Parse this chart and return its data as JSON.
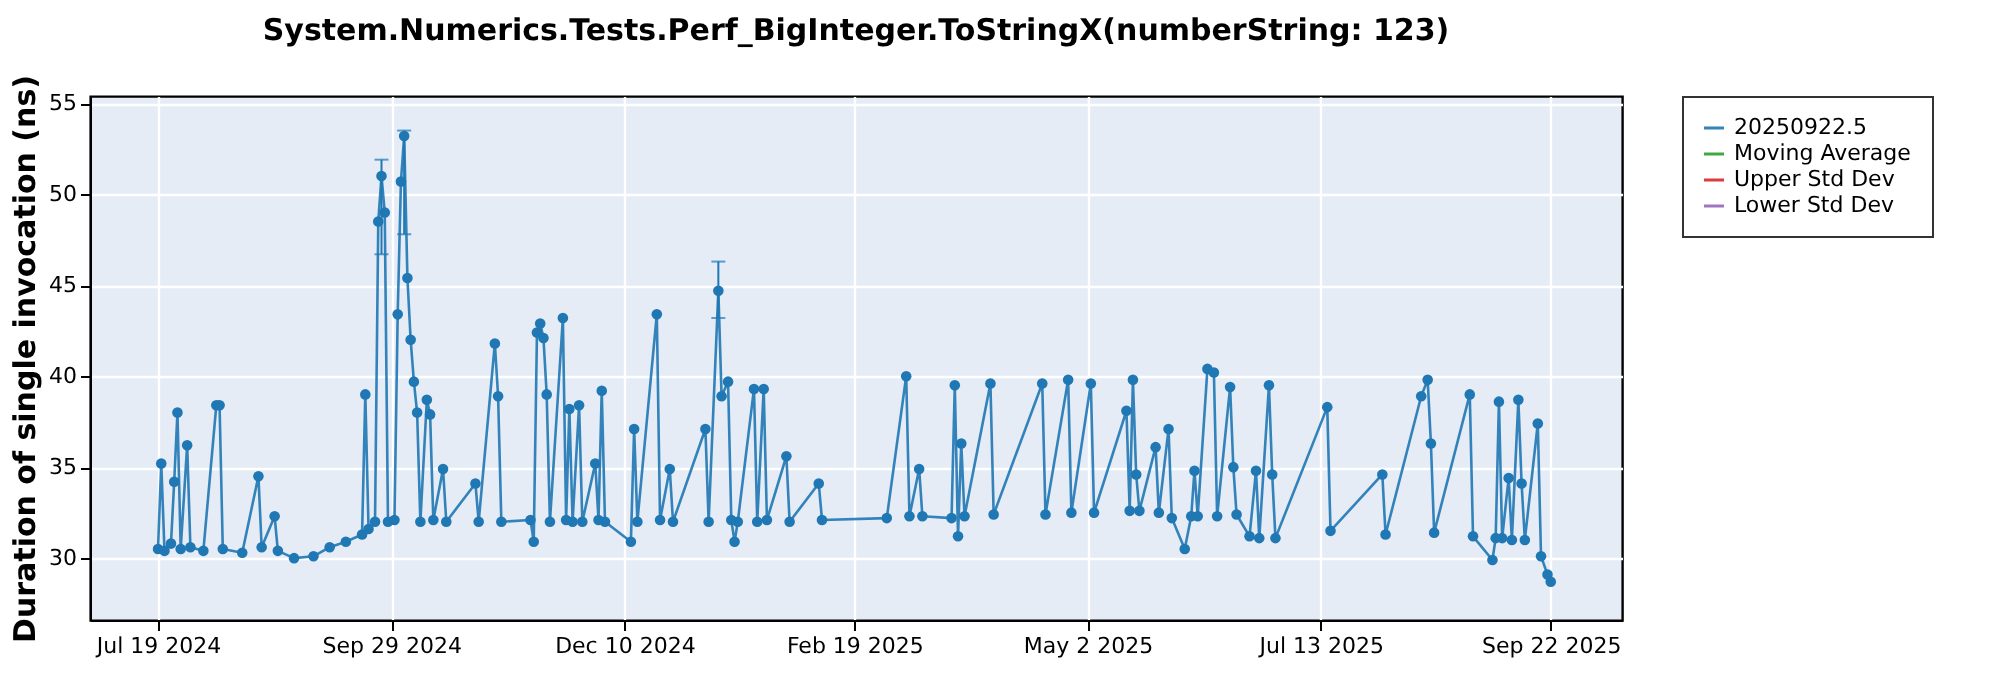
{
  "chart_data": {
    "type": "line",
    "title": "System.Numerics.Tests.Perf_BigInteger.ToStringX(numberString: 123)",
    "ylabel": "Duration of single invocation (ns)",
    "xlim": [
      "2024-06-28",
      "2025-10-14"
    ],
    "xticks": [
      {
        "value": "2024-07-19",
        "label": "Jul 19 2024"
      },
      {
        "value": "2024-09-29",
        "label": "Sep 29 2024"
      },
      {
        "value": "2024-12-10",
        "label": "Dec 10 2024"
      },
      {
        "value": "2025-02-19",
        "label": "Feb 19 2025"
      },
      {
        "value": "2025-05-02",
        "label": "May 2 2025"
      },
      {
        "value": "2025-07-13",
        "label": "Jul 13 2025"
      },
      {
        "value": "2025-09-22",
        "label": "Sep 22 2025"
      }
    ],
    "ylim": [
      26.6,
      55.4
    ],
    "yticks": [
      30,
      35,
      40,
      45,
      50,
      55
    ],
    "grid": true,
    "legend": "right",
    "marker": "circle",
    "line_style": "solid",
    "series": [
      {
        "name": "20250922.5",
        "color": "#1f77b4",
        "x": [
          "2024-07-19",
          "2024-07-20",
          "2024-07-21",
          "2024-07-23",
          "2024-07-24",
          "2024-07-25",
          "2024-07-26",
          "2024-07-28",
          "2024-07-29",
          "2024-08-02",
          "2024-08-06",
          "2024-08-07",
          "2024-08-08",
          "2024-08-14",
          "2024-08-19",
          "2024-08-20",
          "2024-08-24",
          "2024-08-25",
          "2024-08-30",
          "2024-09-05",
          "2024-09-10",
          "2024-09-15",
          "2024-09-20",
          "2024-09-21",
          "2024-09-22",
          "2024-09-24",
          "2024-09-25",
          "2024-09-26",
          "2024-09-27",
          "2024-09-28",
          "2024-09-30",
          "2024-10-01",
          "2024-10-02",
          "2024-10-03",
          "2024-10-04",
          "2024-10-05",
          "2024-10-06",
          "2024-10-07",
          "2024-10-08",
          "2024-10-10",
          "2024-10-11",
          "2024-10-12",
          "2024-10-15",
          "2024-10-16",
          "2024-10-25",
          "2024-10-26",
          "2024-10-31",
          "2024-11-01",
          "2024-11-02",
          "2024-11-11",
          "2024-11-12",
          "2024-11-13",
          "2024-11-14",
          "2024-11-15",
          "2024-11-16",
          "2024-11-17",
          "2024-11-21",
          "2024-11-22",
          "2024-11-23",
          "2024-11-24",
          "2024-11-26",
          "2024-11-27",
          "2024-12-01",
          "2024-12-02",
          "2024-12-03",
          "2024-12-04",
          "2024-12-12",
          "2024-12-13",
          "2024-12-14",
          "2024-12-20",
          "2024-12-21",
          "2024-12-24",
          "2024-12-25",
          "2025-01-04",
          "2025-01-05",
          "2025-01-08",
          "2025-01-09",
          "2025-01-11",
          "2025-01-12",
          "2025-01-13",
          "2025-01-14",
          "2025-01-19",
          "2025-01-20",
          "2025-01-22",
          "2025-01-23",
          "2025-01-29",
          "2025-01-30",
          "2025-02-08",
          "2025-02-09",
          "2025-03-01",
          "2025-03-07",
          "2025-03-08",
          "2025-03-11",
          "2025-03-12",
          "2025-03-21",
          "2025-03-22",
          "2025-03-23",
          "2025-03-24",
          "2025-03-25",
          "2025-04-02",
          "2025-04-03",
          "2025-04-18",
          "2025-04-19",
          "2025-04-26",
          "2025-04-27",
          "2025-05-03",
          "2025-05-04",
          "2025-05-14",
          "2025-05-15",
          "2025-05-16",
          "2025-05-17",
          "2025-05-18",
          "2025-05-23",
          "2025-05-24",
          "2025-05-27",
          "2025-05-28",
          "2025-06-01",
          "2025-06-03",
          "2025-06-04",
          "2025-06-05",
          "2025-06-08",
          "2025-06-10",
          "2025-06-11",
          "2025-06-15",
          "2025-06-16",
          "2025-06-17",
          "2025-06-21",
          "2025-06-23",
          "2025-06-24",
          "2025-06-27",
          "2025-06-28",
          "2025-06-29",
          "2025-07-15",
          "2025-07-16",
          "2025-08-01",
          "2025-08-02",
          "2025-08-13",
          "2025-08-15",
          "2025-08-16",
          "2025-08-17",
          "2025-08-28",
          "2025-08-29",
          "2025-09-04",
          "2025-09-05",
          "2025-09-06",
          "2025-09-07",
          "2025-09-09",
          "2025-09-10",
          "2025-09-12",
          "2025-09-13",
          "2025-09-14",
          "2025-09-18",
          "2025-09-19",
          "2025-09-21",
          "2025-09-22"
        ],
        "values": [
          30.5,
          35.2,
          30.4,
          30.8,
          34.2,
          38.0,
          30.5,
          36.2,
          30.6,
          30.4,
          38.4,
          38.4,
          30.5,
          30.3,
          34.5,
          30.6,
          32.3,
          30.4,
          30.0,
          30.1,
          30.6,
          30.9,
          31.3,
          39.0,
          31.6,
          32.0,
          48.5,
          51.0,
          49.0,
          32.0,
          32.1,
          43.4,
          50.7,
          53.2,
          45.4,
          42.0,
          39.7,
          38.0,
          32.0,
          38.7,
          37.9,
          32.1,
          34.9,
          32.0,
          34.1,
          32.0,
          41.8,
          38.9,
          32.0,
          32.1,
          30.9,
          42.4,
          42.9,
          42.1,
          39.0,
          32.0,
          43.2,
          32.1,
          38.2,
          32.0,
          38.4,
          32.0,
          35.2,
          32.1,
          39.2,
          32.0,
          30.9,
          37.1,
          32.0,
          43.4,
          32.1,
          34.9,
          32.0,
          37.1,
          32.0,
          44.7,
          38.9,
          39.7,
          32.1,
          30.9,
          32.0,
          39.3,
          32.0,
          39.3,
          32.1,
          35.6,
          32.0,
          34.1,
          32.1,
          32.2,
          40.0,
          32.3,
          34.9,
          32.3,
          32.2,
          39.5,
          31.2,
          36.3,
          32.3,
          39.6,
          32.4,
          39.6,
          32.4,
          39.8,
          32.5,
          39.6,
          32.5,
          38.1,
          32.6,
          39.8,
          34.6,
          32.6,
          36.1,
          32.5,
          37.1,
          32.2,
          30.5,
          32.3,
          34.8,
          32.3,
          40.4,
          40.2,
          32.3,
          39.4,
          35.0,
          32.4,
          31.2,
          34.8,
          31.1,
          39.5,
          34.6,
          31.1,
          38.3,
          31.5,
          34.6,
          31.3,
          38.9,
          39.8,
          36.3,
          31.4,
          39.0,
          31.2,
          29.9,
          31.1,
          38.6,
          31.1,
          34.4,
          31.0,
          38.7,
          34.1,
          31.0,
          37.4,
          30.1,
          29.1,
          28.7
        ],
        "errors": [
          null,
          null,
          null,
          null,
          null,
          null,
          null,
          null,
          null,
          null,
          null,
          null,
          null,
          null,
          null,
          null,
          null,
          null,
          null,
          null,
          null,
          null,
          null,
          null,
          null,
          null,
          null,
          [
            46.7,
            51.9
          ],
          null,
          null,
          null,
          null,
          null,
          [
            47.8,
            53.5
          ],
          null,
          null,
          null,
          null,
          null,
          null,
          null,
          null,
          null,
          null,
          null,
          null,
          null,
          null,
          null,
          null,
          null,
          null,
          null,
          null,
          null,
          null,
          null,
          null,
          null,
          null,
          null,
          null,
          null,
          null,
          null,
          null,
          null,
          null,
          null,
          null,
          null,
          null,
          null,
          null,
          null,
          [
            43.2,
            46.3
          ],
          null,
          null,
          null,
          null,
          null,
          null,
          null,
          null,
          null,
          null,
          null,
          null,
          null,
          null,
          null,
          null,
          null,
          null,
          null,
          null,
          null,
          null,
          null,
          null,
          null,
          null,
          null,
          null,
          null,
          null,
          null,
          null,
          null,
          null,
          null,
          null,
          null,
          null,
          null,
          null,
          null,
          null,
          null,
          null,
          null,
          null,
          null,
          null,
          null,
          null,
          null,
          null,
          null,
          null,
          null,
          null,
          null,
          null,
          null,
          null,
          null,
          null,
          null,
          null,
          null,
          null,
          null,
          null,
          null,
          null,
          null,
          null,
          null,
          null,
          null,
          null,
          null,
          null,
          null
        ]
      },
      {
        "name": "Moving Average",
        "color": "#2ca02c"
      },
      {
        "name": "Upper Std Dev",
        "color": "#d62728"
      },
      {
        "name": "Lower Std Dev",
        "color": "#9467bd"
      }
    ]
  }
}
